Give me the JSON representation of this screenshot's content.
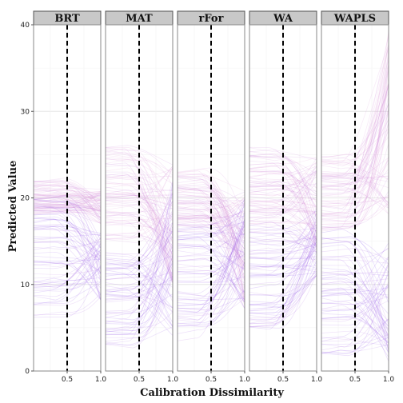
{
  "chart_data": {
    "type": "line",
    "xlabel": "Calibration Dissimilarity",
    "ylabel": "Predicted Value",
    "xlim": [
      0,
      1.0
    ],
    "ylim": [
      0,
      40
    ],
    "y_ticks": [
      0,
      10,
      20,
      30,
      40
    ],
    "x_ticks": [
      0.5,
      1.0
    ],
    "x_tick_labels": [
      "0.5",
      "1.0"
    ],
    "reference_line_x": 0.5,
    "grid": true,
    "colors": {
      "line_start": "#e8a6d8",
      "line_end": "#8a55f0",
      "strip_fill": "#c8c8c8",
      "strip_border": "#555555",
      "panel_border": "#888888",
      "grid": "#e6e6e6",
      "reference_line": "#000000"
    },
    "panels": [
      {
        "name": "BRT",
        "upper_start": [
          18,
          22
        ],
        "lower_start": [
          6,
          20
        ],
        "upper_end": [
          17,
          21
        ],
        "lower_end": [
          8,
          16
        ]
      },
      {
        "name": "MAT",
        "upper_start": [
          15,
          26
        ],
        "lower_start": [
          3,
          14
        ],
        "upper_end": [
          10,
          24
        ],
        "lower_end": [
          4,
          22
        ]
      },
      {
        "name": "rFor",
        "upper_start": [
          16,
          23
        ],
        "lower_start": [
          3,
          17
        ],
        "upper_end": [
          7,
          21
        ],
        "lower_end": [
          7,
          20
        ]
      },
      {
        "name": "WA",
        "upper_start": [
          16,
          26
        ],
        "lower_start": [
          5,
          17
        ],
        "upper_end": [
          14,
          25
        ],
        "lower_end": [
          11,
          19
        ]
      },
      {
        "name": "WAPLS",
        "upper_start": [
          16,
          25
        ],
        "lower_start": [
          2,
          16
        ],
        "upper_end": [
          18,
          40
        ],
        "lower_end": [
          1,
          15
        ]
      }
    ]
  }
}
